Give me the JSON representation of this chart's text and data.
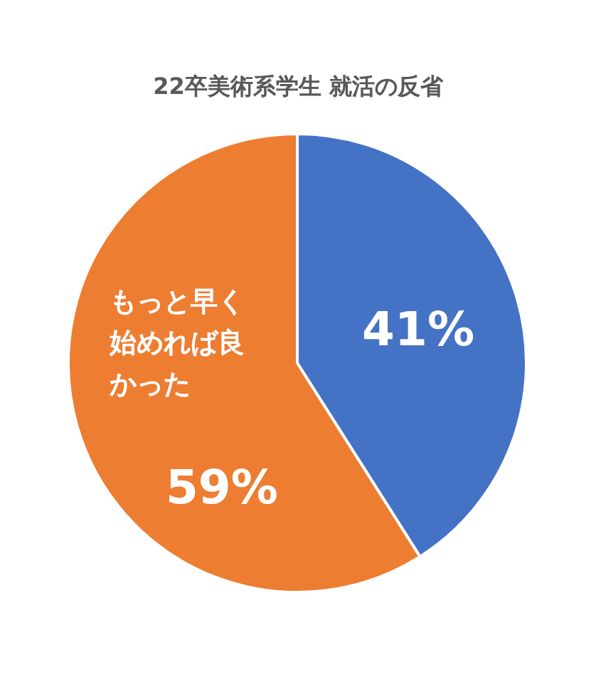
{
  "chart_data": {
    "type": "pie",
    "title": "22卒美術系学生 就活の反省",
    "categories": [
      null,
      "もっと早く始めれば良かった"
    ],
    "values": [
      41,
      59
    ],
    "colors": [
      "#4472c4",
      "#ed7d31"
    ],
    "value_labels": [
      "41%",
      "59%"
    ],
    "legend": false
  }
}
